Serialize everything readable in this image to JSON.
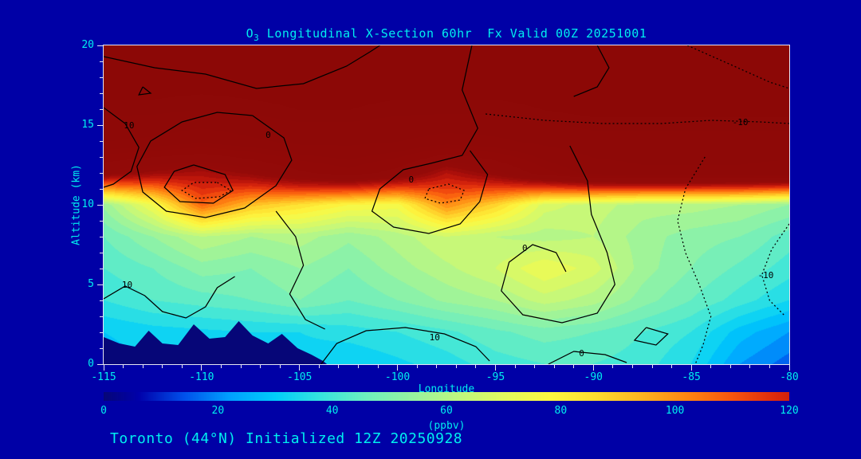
{
  "page": {
    "background": "#0000A6",
    "text_color": "#00EFEF",
    "frame_color": "#E6E6F2",
    "footer": "Toronto (44°N) Initialized 12Z 20250928"
  },
  "chart_data": {
    "type": "heatmap",
    "title": {
      "prefix": "O",
      "sub": "3",
      "rest": " Longitudinal X-Section 60hr  Fx Valid 00Z 20251001"
    },
    "xlabel": "Longitude",
    "ylabel": "Altitude (km)",
    "x_range": [
      -115,
      -80
    ],
    "y_range": [
      0,
      20
    ],
    "xticks": [
      -115,
      -110,
      -105,
      -100,
      -95,
      -90,
      -85,
      -80
    ],
    "yticks": [
      0,
      5,
      10,
      15,
      20
    ],
    "grid": false,
    "x": [
      -115,
      -112.5,
      -110,
      -107.5,
      -105,
      -102.5,
      -100,
      -97.5,
      -95,
      -92.5,
      -90,
      -87.5,
      -85,
      -82.5,
      -80
    ],
    "y": [
      0,
      2,
      4,
      6,
      8,
      10,
      12,
      14,
      16,
      18,
      20
    ],
    "values_ppbv": [
      [
        28,
        30,
        30,
        31,
        32,
        30,
        33,
        36,
        40,
        42,
        42,
        40,
        34,
        22,
        16
      ],
      [
        30,
        32,
        33,
        34,
        34,
        36,
        38,
        41,
        45,
        48,
        46,
        42,
        38,
        28,
        22
      ],
      [
        38,
        42,
        44,
        46,
        50,
        46,
        50,
        55,
        58,
        64,
        60,
        52,
        46,
        40,
        34
      ],
      [
        42,
        46,
        52,
        50,
        54,
        50,
        56,
        61,
        66,
        74,
        68,
        56,
        50,
        45,
        40
      ],
      [
        46,
        54,
        62,
        58,
        60,
        55,
        60,
        66,
        62,
        60,
        62,
        56,
        52,
        50,
        44
      ],
      [
        55,
        75,
        108,
        92,
        85,
        78,
        76,
        102,
        88,
        68,
        64,
        60,
        60,
        58,
        54
      ],
      [
        140,
        132,
        128,
        136,
        148,
        155,
        146,
        126,
        138,
        155,
        165,
        168,
        168,
        168,
        166
      ],
      [
        170,
        168,
        164,
        168,
        172,
        172,
        170,
        166,
        168,
        172,
        175,
        175,
        175,
        175,
        175
      ],
      [
        180,
        180,
        178,
        180,
        182,
        182,
        180,
        180,
        180,
        182,
        184,
        184,
        184,
        184,
        184
      ],
      [
        186,
        186,
        186,
        186,
        186,
        186,
        186,
        186,
        186,
        186,
        186,
        186,
        186,
        186,
        186
      ],
      [
        188,
        188,
        188,
        188,
        188,
        188,
        188,
        188,
        188,
        188,
        188,
        188,
        188,
        188,
        188
      ]
    ],
    "colormap_stops": [
      [
        0,
        [
          6,
          6,
          120
        ]
      ],
      [
        6,
        [
          0,
          0,
          170
        ]
      ],
      [
        14,
        [
          0,
          80,
          235
        ]
      ],
      [
        22,
        [
          0,
          160,
          255
        ]
      ],
      [
        30,
        [
          0,
          205,
          250
        ]
      ],
      [
        38,
        [
          55,
          228,
          222
        ]
      ],
      [
        46,
        [
          110,
          238,
          190
        ]
      ],
      [
        54,
        [
          150,
          243,
          160
        ]
      ],
      [
        62,
        [
          190,
          247,
          128
        ]
      ],
      [
        70,
        [
          225,
          250,
          95
        ]
      ],
      [
        78,
        [
          252,
          248,
          65
        ]
      ],
      [
        86,
        [
          255,
          222,
          48
        ]
      ],
      [
        94,
        [
          255,
          182,
          32
        ]
      ],
      [
        102,
        [
          255,
          135,
          18
        ]
      ],
      [
        110,
        [
          248,
          85,
          14
        ]
      ],
      [
        118,
        [
          220,
          40,
          12
        ]
      ],
      [
        126,
        [
          178,
          16,
          10
        ]
      ],
      [
        134,
        [
          148,
          10,
          8
        ]
      ],
      [
        200,
        [
          138,
          8,
          6
        ]
      ]
    ],
    "colorbar": {
      "label": "(ppbv)",
      "ticks": [
        0,
        20,
        40,
        60,
        80,
        100,
        120
      ],
      "min": 0,
      "max": 120
    },
    "terrain": {
      "color": "#060678",
      "points": [
        [
          -115,
          1.7
        ],
        [
          -114.2,
          1.3
        ],
        [
          -113.4,
          1.1
        ],
        [
          -112.7,
          2.1
        ],
        [
          -112.0,
          1.3
        ],
        [
          -111.2,
          1.2
        ],
        [
          -110.4,
          2.5
        ],
        [
          -109.6,
          1.6
        ],
        [
          -108.8,
          1.7
        ],
        [
          -108.1,
          2.7
        ],
        [
          -107.4,
          1.8
        ],
        [
          -106.6,
          1.3
        ],
        [
          -105.9,
          1.9
        ],
        [
          -105.1,
          1.0
        ],
        [
          -104.4,
          0.6
        ],
        [
          -103.8,
          0.2
        ],
        [
          -103.6,
          0
        ],
        [
          -115,
          0
        ]
      ]
    },
    "contour_overlay": {
      "lines": [
        {
          "style": "solid",
          "label": null,
          "points": [
            [
              -115,
              19.3
            ],
            [
              -112.4,
              18.6
            ],
            [
              -109.8,
              18.2
            ],
            [
              -107.2,
              17.3
            ],
            [
              -104.8,
              17.6
            ],
            [
              -102.6,
              18.7
            ],
            [
              -101.4,
              19.6
            ],
            [
              -100.9,
              20
            ]
          ]
        },
        {
          "style": "solid",
          "label": "0",
          "label_at": [
            -106.6,
            14.4
          ],
          "points": [
            [
              -107.4,
              15.6
            ],
            [
              -105.8,
              14.2
            ],
            [
              -105.4,
              12.8
            ],
            [
              -106.2,
              11.2
            ],
            [
              -107.8,
              9.8
            ],
            [
              -109.8,
              9.2
            ],
            [
              -111.8,
              9.6
            ],
            [
              -113.0,
              10.8
            ],
            [
              -113.3,
              12.4
            ],
            [
              -112.6,
              14.0
            ],
            [
              -111.0,
              15.2
            ],
            [
              -109.2,
              15.8
            ],
            [
              -107.4,
              15.6
            ]
          ]
        },
        {
          "style": "solid",
          "label": null,
          "points": [
            [
              -110.4,
              12.5
            ],
            [
              -108.8,
              11.9
            ],
            [
              -108.4,
              10.9
            ],
            [
              -109.4,
              10.1
            ],
            [
              -111.1,
              10.2
            ],
            [
              -111.9,
              11.1
            ],
            [
              -111.4,
              12.1
            ],
            [
              -110.4,
              12.5
            ]
          ]
        },
        {
          "style": "dotted",
          "label": null,
          "points": [
            [
              -109.2,
              11.4
            ],
            [
              -108.5,
              10.9
            ],
            [
              -109.1,
              10.5
            ],
            [
              -110.3,
              10.4
            ],
            [
              -111.0,
              10.9
            ],
            [
              -110.4,
              11.4
            ],
            [
              -109.2,
              11.4
            ]
          ]
        },
        {
          "style": "solid",
          "label": "10",
          "label_at": [
            -113.7,
            15.0
          ],
          "points": [
            [
              -115,
              16.1
            ],
            [
              -113.9,
              15.1
            ],
            [
              -113.2,
              13.6
            ],
            [
              -113.6,
              12.1
            ],
            [
              -114.5,
              11.3
            ],
            [
              -115,
              11.1
            ]
          ]
        },
        {
          "style": "solid",
          "label": null,
          "points": [
            [
              -113.0,
              17.4
            ],
            [
              -112.6,
              17.0
            ],
            [
              -113.2,
              16.9
            ],
            [
              -113.0,
              17.4
            ]
          ]
        },
        {
          "style": "solid",
          "label": "0",
          "label_at": [
            -99.3,
            11.6
          ],
          "points": [
            [
              -96.2,
              20
            ],
            [
              -96.7,
              17.2
            ],
            [
              -95.9,
              14.8
            ],
            [
              -96.7,
              13.1
            ],
            [
              -98.3,
              12.6
            ],
            [
              -99.7,
              12.2
            ],
            [
              -100.9,
              11.0
            ],
            [
              -101.3,
              9.6
            ],
            [
              -100.2,
              8.6
            ],
            [
              -98.4,
              8.2
            ],
            [
              -96.8,
              8.8
            ],
            [
              -95.8,
              10.2
            ],
            [
              -95.4,
              11.9
            ],
            [
              -96.3,
              13.4
            ]
          ]
        },
        {
          "style": "dotted",
          "label": null,
          "points": [
            [
              -98.4,
              11.0
            ],
            [
              -97.4,
              11.3
            ],
            [
              -96.6,
              10.9
            ],
            [
              -96.8,
              10.3
            ],
            [
              -97.8,
              10.1
            ],
            [
              -98.6,
              10.4
            ],
            [
              -98.4,
              11.0
            ]
          ]
        },
        {
          "style": "solid",
          "label": "0",
          "label_at": [
            -93.5,
            7.3
          ],
          "points": [
            [
              -91.2,
              13.7
            ],
            [
              -90.3,
              11.5
            ],
            [
              -90.1,
              9.4
            ],
            [
              -89.3,
              7.0
            ],
            [
              -88.9,
              5.0
            ],
            [
              -89.8,
              3.2
            ],
            [
              -91.6,
              2.6
            ],
            [
              -93.6,
              3.1
            ],
            [
              -94.7,
              4.6
            ],
            [
              -94.3,
              6.4
            ],
            [
              -93.1,
              7.5
            ],
            [
              -91.9,
              7.0
            ],
            [
              -91.4,
              5.8
            ]
          ]
        },
        {
          "style": "solid",
          "label": "0",
          "label_at": [
            -90.6,
            0.7
          ],
          "points": [
            [
              -92.3,
              0
            ],
            [
              -91.0,
              0.8
            ],
            [
              -89.4,
              0.6
            ],
            [
              -88.3,
              0.1
            ]
          ]
        },
        {
          "style": "solid",
          "label": "10",
          "label_at": [
            -98.1,
            1.7
          ],
          "points": [
            [
              -103.9,
              0
            ],
            [
              -103.1,
              1.3
            ],
            [
              -101.6,
              2.1
            ],
            [
              -99.6,
              2.3
            ],
            [
              -97.6,
              1.9
            ],
            [
              -96.0,
              1.1
            ],
            [
              -95.3,
              0.2
            ]
          ]
        },
        {
          "style": "solid",
          "label": null,
          "points": [
            [
              -106.2,
              9.6
            ],
            [
              -105.2,
              8.0
            ],
            [
              -104.8,
              6.2
            ],
            [
              -105.5,
              4.4
            ],
            [
              -104.7,
              2.8
            ],
            [
              -103.7,
              2.2
            ]
          ]
        },
        {
          "style": "solid",
          "label": "10",
          "label_at": [
            -113.8,
            5.0
          ],
          "points": [
            [
              -115,
              4.1
            ],
            [
              -113.9,
              4.9
            ],
            [
              -112.9,
              4.3
            ],
            [
              -112.0,
              3.3
            ],
            [
              -110.8,
              2.9
            ],
            [
              -109.8,
              3.6
            ],
            [
              -109.2,
              4.8
            ],
            [
              -108.3,
              5.5
            ]
          ]
        },
        {
          "style": "solid",
          "label": null,
          "points": [
            [
              -87.3,
              2.3
            ],
            [
              -86.2,
              1.9
            ],
            [
              -86.8,
              1.2
            ],
            [
              -87.9,
              1.5
            ],
            [
              -87.3,
              2.3
            ]
          ]
        },
        {
          "style": "dotted",
          "label": "-10",
          "label_at": [
            -82.5,
            15.2
          ],
          "points": [
            [
              -95.5,
              15.7
            ],
            [
              -92.5,
              15.3
            ],
            [
              -89.5,
              15.1
            ],
            [
              -86.5,
              15.1
            ],
            [
              -84.0,
              15.3
            ],
            [
              -81.5,
              15.2
            ],
            [
              -80,
              15.1
            ]
          ]
        },
        {
          "style": "dotted",
          "label": null,
          "points": [
            [
              -84.3,
              13.0
            ],
            [
              -85.3,
              11.0
            ],
            [
              -85.7,
              9.0
            ],
            [
              -85.3,
              7.0
            ],
            [
              -84.6,
              5.0
            ],
            [
              -84.0,
              3.0
            ],
            [
              -84.4,
              1.2
            ],
            [
              -84.8,
              0
            ]
          ]
        },
        {
          "style": "dotted",
          "label": "-10",
          "label_at": [
            -81.2,
            5.6
          ],
          "points": [
            [
              -80,
              8.8
            ],
            [
              -80.9,
              7.2
            ],
            [
              -81.4,
              5.6
            ],
            [
              -81.0,
              4.0
            ],
            [
              -80.2,
              3.0
            ]
          ]
        },
        {
          "style": "dotted",
          "label": null,
          "points": [
            [
              -85.2,
              20
            ],
            [
              -83.0,
              18.8
            ],
            [
              -81.0,
              17.7
            ],
            [
              -80,
              17.3
            ]
          ]
        },
        {
          "style": "solid",
          "label": null,
          "points": [
            [
              -89.8,
              20
            ],
            [
              -89.2,
              18.6
            ],
            [
              -89.8,
              17.4
            ],
            [
              -91.0,
              16.8
            ]
          ]
        }
      ]
    }
  }
}
